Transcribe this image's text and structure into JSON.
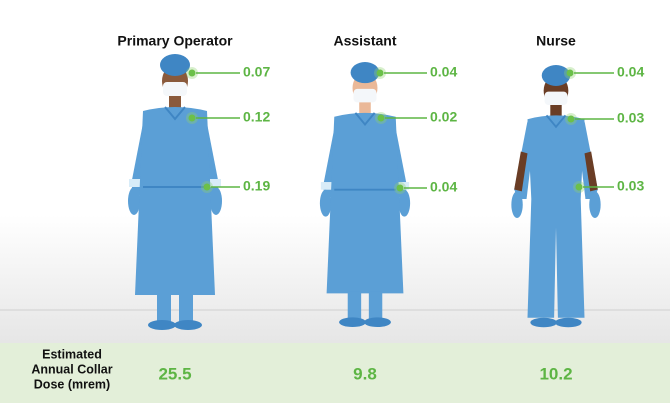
{
  "figures": [
    {
      "title": "Primary Operator",
      "labels": [
        "0.07",
        "0.12",
        "0.19"
      ],
      "annual": "25.5"
    },
    {
      "title": "Assistant",
      "labels": [
        "0.04",
        "0.02",
        "0.04"
      ],
      "annual": "9.8"
    },
    {
      "title": "Nurse",
      "labels": [
        "0.04",
        "0.03",
        "0.03"
      ],
      "annual": "10.2"
    }
  ],
  "footer": {
    "label_lines": [
      "Estimated",
      "Annual Collar",
      "Dose (mrem)"
    ]
  }
}
